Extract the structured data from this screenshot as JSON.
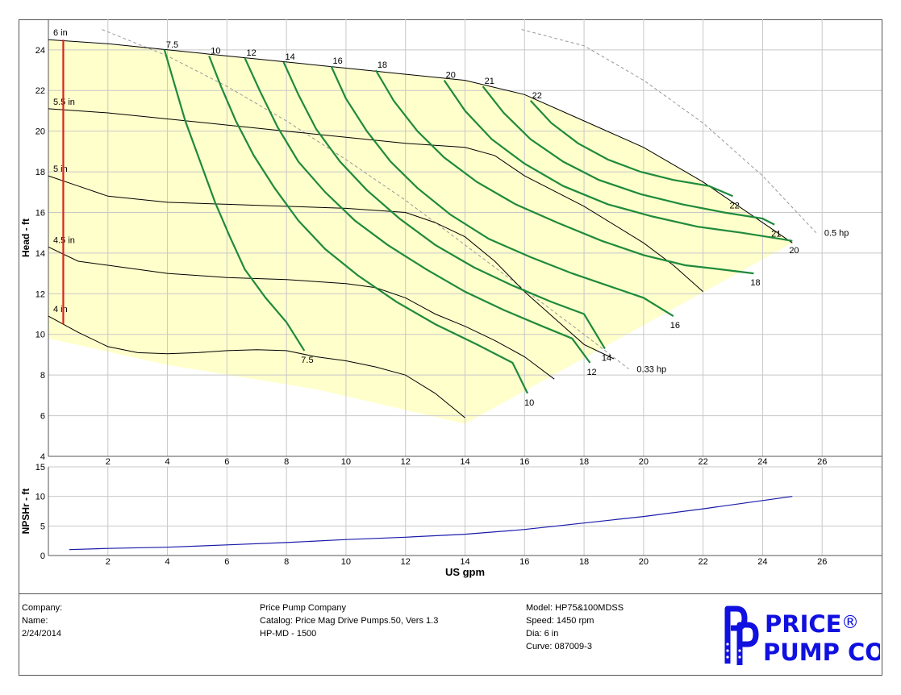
{
  "chart_data": [
    {
      "type": "line",
      "name": "head-curves",
      "ylabel": "Head - ft",
      "xlim": [
        0,
        28
      ],
      "ylim": [
        4,
        25.5
      ],
      "x_ticks": [
        2,
        4,
        6,
        8,
        10,
        12,
        14,
        16,
        18,
        20,
        22,
        24,
        26
      ],
      "y_ticks": [
        4,
        6,
        8,
        10,
        12,
        14,
        16,
        18,
        20,
        22,
        24
      ],
      "grid": true,
      "impeller_curves": [
        {
          "label": "6 in",
          "points": [
            [
              0,
              24.5
            ],
            [
              2,
              24.3
            ],
            [
              4,
              24.0
            ],
            [
              6,
              23.7
            ],
            [
              8,
              23.4
            ],
            [
              10,
              23.1
            ],
            [
              12,
              22.8
            ],
            [
              14,
              22.5
            ],
            [
              16,
              21.8
            ],
            [
              18,
              20.5
            ],
            [
              20,
              19.2
            ],
            [
              22,
              17.5
            ],
            [
              24,
              15.5
            ],
            [
              25,
              14.5
            ]
          ]
        },
        {
          "label": "5.5 in",
          "points": [
            [
              0,
              21.1
            ],
            [
              2,
              20.9
            ],
            [
              4,
              20.6
            ],
            [
              6,
              20.3
            ],
            [
              8,
              20.0
            ],
            [
              10,
              19.7
            ],
            [
              12,
              19.4
            ],
            [
              14,
              19.2
            ],
            [
              15,
              18.8
            ],
            [
              16,
              17.8
            ],
            [
              18,
              16.3
            ],
            [
              20,
              14.5
            ],
            [
              21,
              13.4
            ],
            [
              22,
              12.1
            ]
          ]
        },
        {
          "label": "5 in",
          "points": [
            [
              0,
              17.8
            ],
            [
              1,
              17.3
            ],
            [
              2,
              16.8
            ],
            [
              4,
              16.5
            ],
            [
              6,
              16.4
            ],
            [
              8,
              16.3
            ],
            [
              10,
              16.2
            ],
            [
              12,
              16.0
            ],
            [
              13,
              15.5
            ],
            [
              14,
              14.8
            ],
            [
              15,
              13.6
            ],
            [
              16,
              12.1
            ],
            [
              17,
              10.8
            ],
            [
              18,
              9.5
            ],
            [
              19,
              8.8
            ]
          ]
        },
        {
          "label": "4.5 in",
          "points": [
            [
              0,
              14.3
            ],
            [
              1,
              13.6
            ],
            [
              2,
              13.4
            ],
            [
              4,
              13.0
            ],
            [
              6,
              12.8
            ],
            [
              8,
              12.7
            ],
            [
              10,
              12.5
            ],
            [
              11,
              12.3
            ],
            [
              12,
              11.8
            ],
            [
              13,
              11.0
            ],
            [
              14,
              10.4
            ],
            [
              15,
              9.7
            ],
            [
              16,
              8.9
            ],
            [
              17,
              7.8
            ]
          ]
        },
        {
          "label": "4 in",
          "points": [
            [
              0,
              10.9
            ],
            [
              1,
              10.1
            ],
            [
              2,
              9.4
            ],
            [
              3,
              9.1
            ],
            [
              4,
              9.05
            ],
            [
              5,
              9.1
            ],
            [
              6,
              9.2
            ],
            [
              7,
              9.25
            ],
            [
              8,
              9.2
            ],
            [
              9,
              8.9
            ],
            [
              10,
              8.7
            ],
            [
              11,
              8.4
            ],
            [
              12,
              8.0
            ],
            [
              13,
              7.1
            ],
            [
              14,
              5.9
            ]
          ]
        }
      ],
      "hp_curves": [
        {
          "label": "7.5",
          "points": [
            [
              3.9,
              24.0
            ],
            [
              4.2,
              22.5
            ],
            [
              4.6,
              20.5
            ],
            [
              5.1,
              18.5
            ],
            [
              5.6,
              16.5
            ],
            [
              6.1,
              14.8
            ],
            [
              6.6,
              13.2
            ],
            [
              7.3,
              11.8
            ],
            [
              8.0,
              10.6
            ],
            [
              8.6,
              9.2
            ]
          ]
        },
        {
          "label": "10",
          "points": [
            [
              5.4,
              23.7
            ],
            [
              5.8,
              22.2
            ],
            [
              6.3,
              20.5
            ],
            [
              6.9,
              18.8
            ],
            [
              7.6,
              17.2
            ],
            [
              8.4,
              15.6
            ],
            [
              9.3,
              14.2
            ],
            [
              10.4,
              12.9
            ],
            [
              11.7,
              11.6
            ],
            [
              13.0,
              10.5
            ],
            [
              14.4,
              9.5
            ],
            [
              15.6,
              8.6
            ],
            [
              16.1,
              7.1
            ]
          ]
        },
        {
          "label": "12",
          "points": [
            [
              6.6,
              23.6
            ],
            [
              7.1,
              22.0
            ],
            [
              7.7,
              20.2
            ],
            [
              8.4,
              18.5
            ],
            [
              9.3,
              17.0
            ],
            [
              10.3,
              15.6
            ],
            [
              11.4,
              14.4
            ],
            [
              12.7,
              13.2
            ],
            [
              14.0,
              12.1
            ],
            [
              15.3,
              11.2
            ],
            [
              16.6,
              10.4
            ],
            [
              17.6,
              9.8
            ],
            [
              18.2,
              8.6
            ]
          ]
        },
        {
          "label": "14",
          "points": [
            [
              7.9,
              23.4
            ],
            [
              8.4,
              21.8
            ],
            [
              9.0,
              20.1
            ],
            [
              9.8,
              18.5
            ],
            [
              10.7,
              17.1
            ],
            [
              11.8,
              15.7
            ],
            [
              13.0,
              14.4
            ],
            [
              14.3,
              13.3
            ],
            [
              15.6,
              12.4
            ],
            [
              16.9,
              11.6
            ],
            [
              18.0,
              11.0
            ],
            [
              18.7,
              9.3
            ]
          ]
        },
        {
          "label": "16",
          "points": [
            [
              9.5,
              23.2
            ],
            [
              10.0,
              21.6
            ],
            [
              10.7,
              20.0
            ],
            [
              11.5,
              18.5
            ],
            [
              12.4,
              17.2
            ],
            [
              13.5,
              15.9
            ],
            [
              14.8,
              14.7
            ],
            [
              16.2,
              13.8
            ],
            [
              17.6,
              13.0
            ],
            [
              19.0,
              12.3
            ],
            [
              20.0,
              11.8
            ],
            [
              21.0,
              10.9
            ]
          ]
        },
        {
          "label": "18",
          "points": [
            [
              11.0,
              23.0
            ],
            [
              11.6,
              21.5
            ],
            [
              12.4,
              20.0
            ],
            [
              13.3,
              18.7
            ],
            [
              14.4,
              17.5
            ],
            [
              15.7,
              16.4
            ],
            [
              17.1,
              15.5
            ],
            [
              18.6,
              14.6
            ],
            [
              20.0,
              13.9
            ],
            [
              21.4,
              13.4
            ],
            [
              22.6,
              13.2
            ],
            [
              23.7,
              13.0
            ]
          ]
        },
        {
          "label": "20",
          "points": [
            [
              13.3,
              22.5
            ],
            [
              14.0,
              21.0
            ],
            [
              14.9,
              19.6
            ],
            [
              16.0,
              18.4
            ],
            [
              17.3,
              17.3
            ],
            [
              18.8,
              16.4
            ],
            [
              20.3,
              15.8
            ],
            [
              21.8,
              15.3
            ],
            [
              23.3,
              15.0
            ],
            [
              24.6,
              14.7
            ],
            [
              25.0,
              14.6
            ]
          ]
        },
        {
          "label": "21",
          "points": [
            [
              14.6,
              22.2
            ],
            [
              15.3,
              20.9
            ],
            [
              16.2,
              19.6
            ],
            [
              17.3,
              18.5
            ],
            [
              18.5,
              17.6
            ],
            [
              19.9,
              16.9
            ],
            [
              21.3,
              16.4
            ],
            [
              22.7,
              16.0
            ],
            [
              24.0,
              15.7
            ],
            [
              24.4,
              15.4
            ]
          ]
        },
        {
          "label": "22",
          "points": [
            [
              16.2,
              21.5
            ],
            [
              16.9,
              20.4
            ],
            [
              17.8,
              19.4
            ],
            [
              18.8,
              18.6
            ],
            [
              19.9,
              18.0
            ],
            [
              21.0,
              17.6
            ],
            [
              22.2,
              17.3
            ],
            [
              23.0,
              16.8
            ]
          ]
        }
      ],
      "power_lines": [
        {
          "label": "0.33 hp",
          "points": [
            [
              1.8,
              25.0
            ],
            [
              4.0,
              23.7
            ],
            [
              6.0,
              22.2
            ],
            [
              8.0,
              20.5
            ],
            [
              10.0,
              18.6
            ],
            [
              12.0,
              16.6
            ],
            [
              14.0,
              14.4
            ],
            [
              16.0,
              12.2
            ],
            [
              18.0,
              10.0
            ],
            [
              19.5,
              8.3
            ]
          ]
        },
        {
          "label": "0.5 hp",
          "points": [
            [
              15.9,
              25.0
            ],
            [
              18.0,
              24.2
            ],
            [
              20.0,
              22.5
            ],
            [
              22.0,
              20.4
            ],
            [
              24.0,
              17.8
            ],
            [
              25.8,
              15.0
            ]
          ]
        }
      ],
      "operating_region": [
        [
          0,
          24.5
        ],
        [
          4,
          24.0
        ],
        [
          8,
          23.4
        ],
        [
          12,
          22.8
        ],
        [
          14,
          22.5
        ],
        [
          16,
          21.8
        ],
        [
          18,
          20.5
        ],
        [
          20,
          19.2
        ],
        [
          22,
          17.5
        ],
        [
          24,
          15.5
        ],
        [
          25,
          14.5
        ],
        [
          14,
          5.6
        ],
        [
          9,
          7.3
        ],
        [
          4,
          8.5
        ],
        [
          0,
          9.8
        ]
      ],
      "diameter_line": {
        "x": 0.5,
        "from": 10.5,
        "to": 24.5,
        "color": "#dd2222"
      },
      "colors": {
        "fill": "#ffffcc",
        "impeller": "#000000",
        "hp": "#1f8a3c",
        "power": "#999999",
        "grid": "#c8c8c8"
      }
    },
    {
      "type": "line",
      "name": "npshr",
      "ylabel": "NPSHr - ft",
      "xlabel": "US gpm",
      "xlim": [
        0,
        28
      ],
      "ylim": [
        0,
        15
      ],
      "x_ticks": [
        2,
        4,
        6,
        8,
        10,
        12,
        14,
        16,
        18,
        20,
        22,
        24,
        26
      ],
      "y_ticks": [
        0,
        5,
        10,
        15
      ],
      "grid": true,
      "series": [
        {
          "points": [
            [
              0.7,
              1.0
            ],
            [
              2,
              1.2
            ],
            [
              4,
              1.4
            ],
            [
              6,
              1.8
            ],
            [
              8,
              2.2
            ],
            [
              10,
              2.7
            ],
            [
              12,
              3.1
            ],
            [
              14,
              3.6
            ],
            [
              16,
              4.4
            ],
            [
              18,
              5.5
            ],
            [
              20,
              6.6
            ],
            [
              22,
              7.9
            ],
            [
              24,
              9.3
            ],
            [
              25,
              10.0
            ]
          ],
          "color": "#1a1aaa"
        }
      ]
    }
  ],
  "footer": {
    "col1": [
      "Company:",
      "Name:",
      "2/24/2014"
    ],
    "col2": [
      "Price Pump Company",
      "Catalog: Price Mag Drive Pumps.50, Vers 1.3",
      "HP-MD - 1500"
    ],
    "col3": [
      "Model: HP75&100MDSS",
      "Speed: 1450 rpm",
      "Dia: 6 in",
      "Curve: 087009-3"
    ],
    "logo": {
      "line1": "PRICE",
      "reg": "®",
      "line2": "PUMP CO.",
      "color": "#1010e0"
    }
  }
}
